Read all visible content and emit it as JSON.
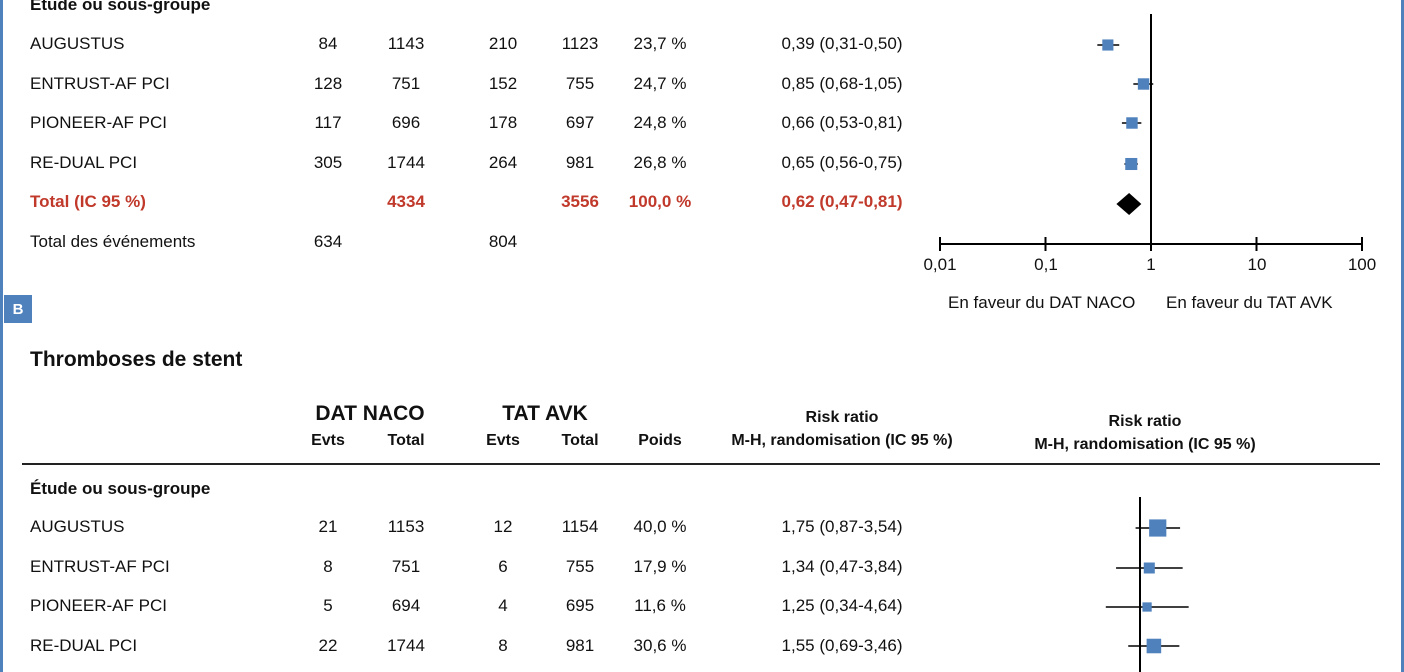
{
  "panel_a": {
    "subgroup_heading": "Étude ou sous-groupe",
    "rows": [
      {
        "study": "AUGUSTUS",
        "e1": "84",
        "t1": "1143",
        "e2": "210",
        "t2": "1123",
        "weight": "23,7 %",
        "rr": "0,39 (0,31-0,50)"
      },
      {
        "study": "ENTRUST-AF PCI",
        "e1": "128",
        "t1": "751",
        "e2": "152",
        "t2": "755",
        "weight": "24,7 %",
        "rr": "0,85 (0,68-1,05)"
      },
      {
        "study": "PIONEER-AF PCI",
        "e1": "117",
        "t1": "696",
        "e2": "178",
        "t2": "697",
        "weight": "24,8 %",
        "rr": "0,66 (0,53-0,81)"
      },
      {
        "study": "RE-DUAL PCI",
        "e1": "305",
        "t1": "1744",
        "e2": "264",
        "t2": "981",
        "weight": "26,8 %",
        "rr": "0,65 (0,56-0,75)"
      }
    ],
    "total": {
      "label": "Total (IC 95 %)",
      "t1": "4334",
      "t2": "3556",
      "weight": "100,0 %",
      "rr": "0,62 (0,47-0,81)"
    },
    "events": {
      "label": "Total des événements",
      "e1": "634",
      "e2": "804"
    },
    "axis_ticks": [
      "0,01",
      "0,1",
      "1",
      "10",
      "100"
    ],
    "favours_left": "En faveur du DAT NACO",
    "favours_right": "En faveur du TAT AVK"
  },
  "panel_b": {
    "badge": "B",
    "title": "Thromboses de stent",
    "group1": "DAT NACO",
    "group2": "TAT AVK",
    "evts": "Evts",
    "total": "Total",
    "poids": "Poids",
    "rr_title": "Risk ratio",
    "rr_sub": "M-H, randomisation (IC 95 %)",
    "subgroup_heading": "Étude ou sous-groupe",
    "rows": [
      {
        "study": "AUGUSTUS",
        "e1": "21",
        "t1": "1153",
        "e2": "12",
        "t2": "1154",
        "weight": "40,0 %",
        "rr": "1,75 (0,87-3,54)"
      },
      {
        "study": "ENTRUST-AF PCI",
        "e1": "8",
        "t1": "751",
        "e2": "6",
        "t2": "755",
        "weight": "17,9 %",
        "rr": "1,34 (0,47-3,84)"
      },
      {
        "study": "PIONEER-AF PCI",
        "e1": "5",
        "t1": "694",
        "e2": "4",
        "t2": "695",
        "weight": "11,6 %",
        "rr": "1,25 (0,34-4,64)"
      },
      {
        "study": "RE-DUAL PCI",
        "e1": "22",
        "t1": "1744",
        "e2": "8",
        "t2": "981",
        "weight": "30,6 %",
        "rr": "1,55 (0,69-3,46)"
      }
    ]
  },
  "chart_data": [
    {
      "type": "forest",
      "scale": "log",
      "xlim": [
        0.01,
        100
      ],
      "x_ticks": [
        0.01,
        0.1,
        1,
        10,
        100
      ],
      "studies": [
        {
          "name": "AUGUSTUS",
          "rr": 0.39,
          "lo": 0.31,
          "hi": 0.5,
          "weight": 23.7
        },
        {
          "name": "ENTRUST-AF PCI",
          "rr": 0.85,
          "lo": 0.68,
          "hi": 1.05,
          "weight": 24.7
        },
        {
          "name": "PIONEER-AF PCI",
          "rr": 0.66,
          "lo": 0.53,
          "hi": 0.81,
          "weight": 24.8
        },
        {
          "name": "RE-DUAL PCI",
          "rr": 0.65,
          "lo": 0.56,
          "hi": 0.75,
          "weight": 26.8
        }
      ],
      "pooled": {
        "rr": 0.62,
        "lo": 0.47,
        "hi": 0.81
      },
      "marker_color": "#4f81bd"
    },
    {
      "type": "forest",
      "scale": "log",
      "title": "Thromboses de stent",
      "studies": [
        {
          "name": "AUGUSTUS",
          "rr": 1.75,
          "lo": 0.87,
          "hi": 3.54,
          "weight": 40.0
        },
        {
          "name": "ENTRUST-AF PCI",
          "rr": 1.34,
          "lo": 0.47,
          "hi": 3.84,
          "weight": 17.9
        },
        {
          "name": "PIONEER-AF PCI",
          "rr": 1.25,
          "lo": 0.34,
          "hi": 4.64,
          "weight": 11.6
        },
        {
          "name": "RE-DUAL PCI",
          "rr": 1.55,
          "lo": 0.69,
          "hi": 3.46,
          "weight": 30.6
        }
      ],
      "marker_color": "#4f81bd"
    }
  ],
  "colors": {
    "accent": "#4f81bd",
    "total_red": "#c0392b"
  }
}
